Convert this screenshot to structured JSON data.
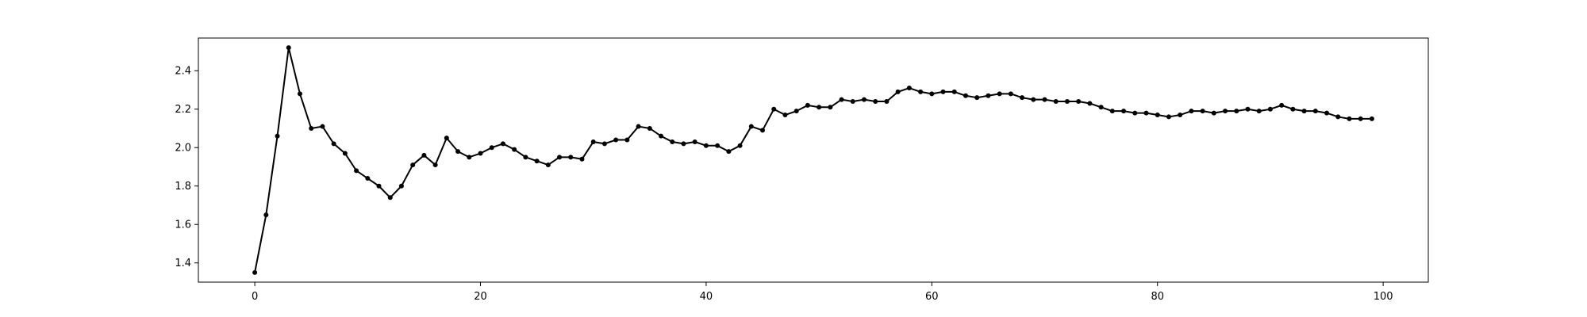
{
  "chart_data": {
    "type": "line",
    "title": "",
    "xlabel": "",
    "ylabel": "",
    "xlim": [
      -5,
      104
    ],
    "ylim": [
      1.3,
      2.57
    ],
    "xticks": [
      0,
      20,
      40,
      60,
      80,
      100
    ],
    "yticks": [
      1.4,
      1.6,
      1.8,
      2.0,
      2.2,
      2.4
    ],
    "xtick_labels": [
      "0",
      "20",
      "40",
      "60",
      "80",
      "100"
    ],
    "ytick_labels": [
      "1.4",
      "1.6",
      "1.8",
      "2.0",
      "2.2",
      "2.4"
    ],
    "grid": false,
    "legend": "none",
    "series": [
      {
        "color": "#000000",
        "marker": "circle",
        "x": [
          0,
          1,
          2,
          3,
          4,
          5,
          6,
          7,
          8,
          9,
          10,
          11,
          12,
          13,
          14,
          15,
          16,
          17,
          18,
          19,
          20,
          21,
          22,
          23,
          24,
          25,
          26,
          27,
          28,
          29,
          30,
          31,
          32,
          33,
          34,
          35,
          36,
          37,
          38,
          39,
          40,
          41,
          42,
          43,
          44,
          45,
          46,
          47,
          48,
          49,
          50,
          51,
          52,
          53,
          54,
          55,
          56,
          57,
          58,
          59,
          60,
          61,
          62,
          63,
          64,
          65,
          66,
          67,
          68,
          69,
          70,
          71,
          72,
          73,
          74,
          75,
          76,
          77,
          78,
          79,
          80,
          81,
          82,
          83,
          84,
          85,
          86,
          87,
          88,
          89,
          90,
          91,
          92,
          93,
          94,
          95,
          96,
          97,
          98,
          99
        ],
        "values": [
          1.35,
          1.65,
          2.06,
          2.52,
          2.28,
          2.1,
          2.11,
          2.02,
          1.97,
          1.88,
          1.84,
          1.8,
          1.74,
          1.8,
          1.91,
          1.96,
          1.91,
          2.05,
          1.98,
          1.95,
          1.97,
          2.0,
          2.02,
          1.99,
          1.95,
          1.93,
          1.91,
          1.95,
          1.95,
          1.94,
          2.03,
          2.02,
          2.04,
          2.04,
          2.11,
          2.1,
          2.06,
          2.03,
          2.02,
          2.03,
          2.01,
          2.01,
          1.98,
          2.01,
          2.11,
          2.09,
          2.2,
          2.17,
          2.19,
          2.22,
          2.21,
          2.21,
          2.25,
          2.24,
          2.25,
          2.24,
          2.24,
          2.29,
          2.31,
          2.29,
          2.28,
          2.29,
          2.29,
          2.27,
          2.26,
          2.27,
          2.28,
          2.28,
          2.26,
          2.25,
          2.25,
          2.24,
          2.24,
          2.24,
          2.23,
          2.21,
          2.19,
          2.19,
          2.18,
          2.18,
          2.17,
          2.16,
          2.17,
          2.19,
          2.19,
          2.18,
          2.19,
          2.19,
          2.2,
          2.19,
          2.2,
          2.22,
          2.2,
          2.19,
          2.19,
          2.18,
          2.16,
          2.15,
          2.15,
          2.15
        ]
      }
    ]
  }
}
